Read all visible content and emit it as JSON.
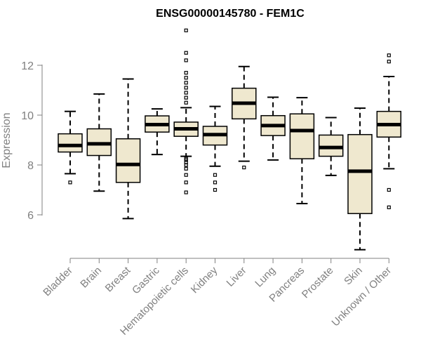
{
  "chart_data": {
    "type": "box",
    "title": "ENSG00000145780 - FEM1C",
    "ylabel": "Expression",
    "ylim": [
      4.5,
      13.6
    ],
    "yticks": [
      6,
      8,
      10,
      12
    ],
    "colors": {
      "box_fill": "#efe8cf",
      "box_stroke": "#000000",
      "axis": "#808080"
    },
    "groups": [
      {
        "category": "Bladder",
        "whisker_low": 7.65,
        "q1": 8.52,
        "median": 8.78,
        "q3": 9.25,
        "whisker_high": 10.15,
        "outliers": [
          7.3
        ]
      },
      {
        "category": "Brain",
        "whisker_low": 6.95,
        "q1": 8.38,
        "median": 8.85,
        "q3": 9.45,
        "whisker_high": 10.85,
        "outliers": []
      },
      {
        "category": "Breast",
        "whisker_low": 5.85,
        "q1": 7.3,
        "median": 8.02,
        "q3": 9.05,
        "whisker_high": 11.45,
        "outliers": []
      },
      {
        "category": "Gastric",
        "whisker_low": 8.42,
        "q1": 9.32,
        "median": 9.62,
        "q3": 9.97,
        "whisker_high": 10.25,
        "outliers": []
      },
      {
        "category": "Hematopoietic cells",
        "whisker_low": 8.35,
        "q1": 9.15,
        "median": 9.45,
        "q3": 9.72,
        "whisker_high": 10.3,
        "outliers": [
          6.9,
          7.3,
          7.6,
          7.85,
          8.0,
          8.1,
          8.2,
          8.25,
          10.5,
          10.7,
          10.9,
          11.1,
          11.3,
          11.5,
          11.7,
          12.2,
          12.5,
          13.4
        ]
      },
      {
        "category": "Kidney",
        "whisker_low": 7.95,
        "q1": 8.8,
        "median": 9.22,
        "q3": 9.55,
        "whisker_high": 10.35,
        "outliers": [
          7.0,
          7.3,
          7.6
        ]
      },
      {
        "category": "Liver",
        "whisker_low": 8.15,
        "q1": 9.85,
        "median": 10.48,
        "q3": 11.08,
        "whisker_high": 11.95,
        "outliers": [
          7.9
        ]
      },
      {
        "category": "Lung",
        "whisker_low": 8.2,
        "q1": 9.18,
        "median": 9.58,
        "q3": 9.98,
        "whisker_high": 10.72,
        "outliers": []
      },
      {
        "category": "Pancreas",
        "whisker_low": 6.45,
        "q1": 8.25,
        "median": 9.38,
        "q3": 10.05,
        "whisker_high": 10.7,
        "outliers": []
      },
      {
        "category": "Prostate",
        "whisker_low": 7.58,
        "q1": 8.35,
        "median": 8.7,
        "q3": 9.2,
        "whisker_high": 9.9,
        "outliers": []
      },
      {
        "category": "Skin",
        "whisker_low": 4.6,
        "q1": 6.05,
        "median": 7.75,
        "q3": 9.22,
        "whisker_high": 10.28,
        "outliers": []
      },
      {
        "category": "Unknown / Other",
        "whisker_low": 7.85,
        "q1": 9.12,
        "median": 9.62,
        "q3": 10.15,
        "whisker_high": 11.55,
        "outliers": [
          6.3,
          7.0,
          12.15,
          12.4
        ]
      }
    ]
  }
}
